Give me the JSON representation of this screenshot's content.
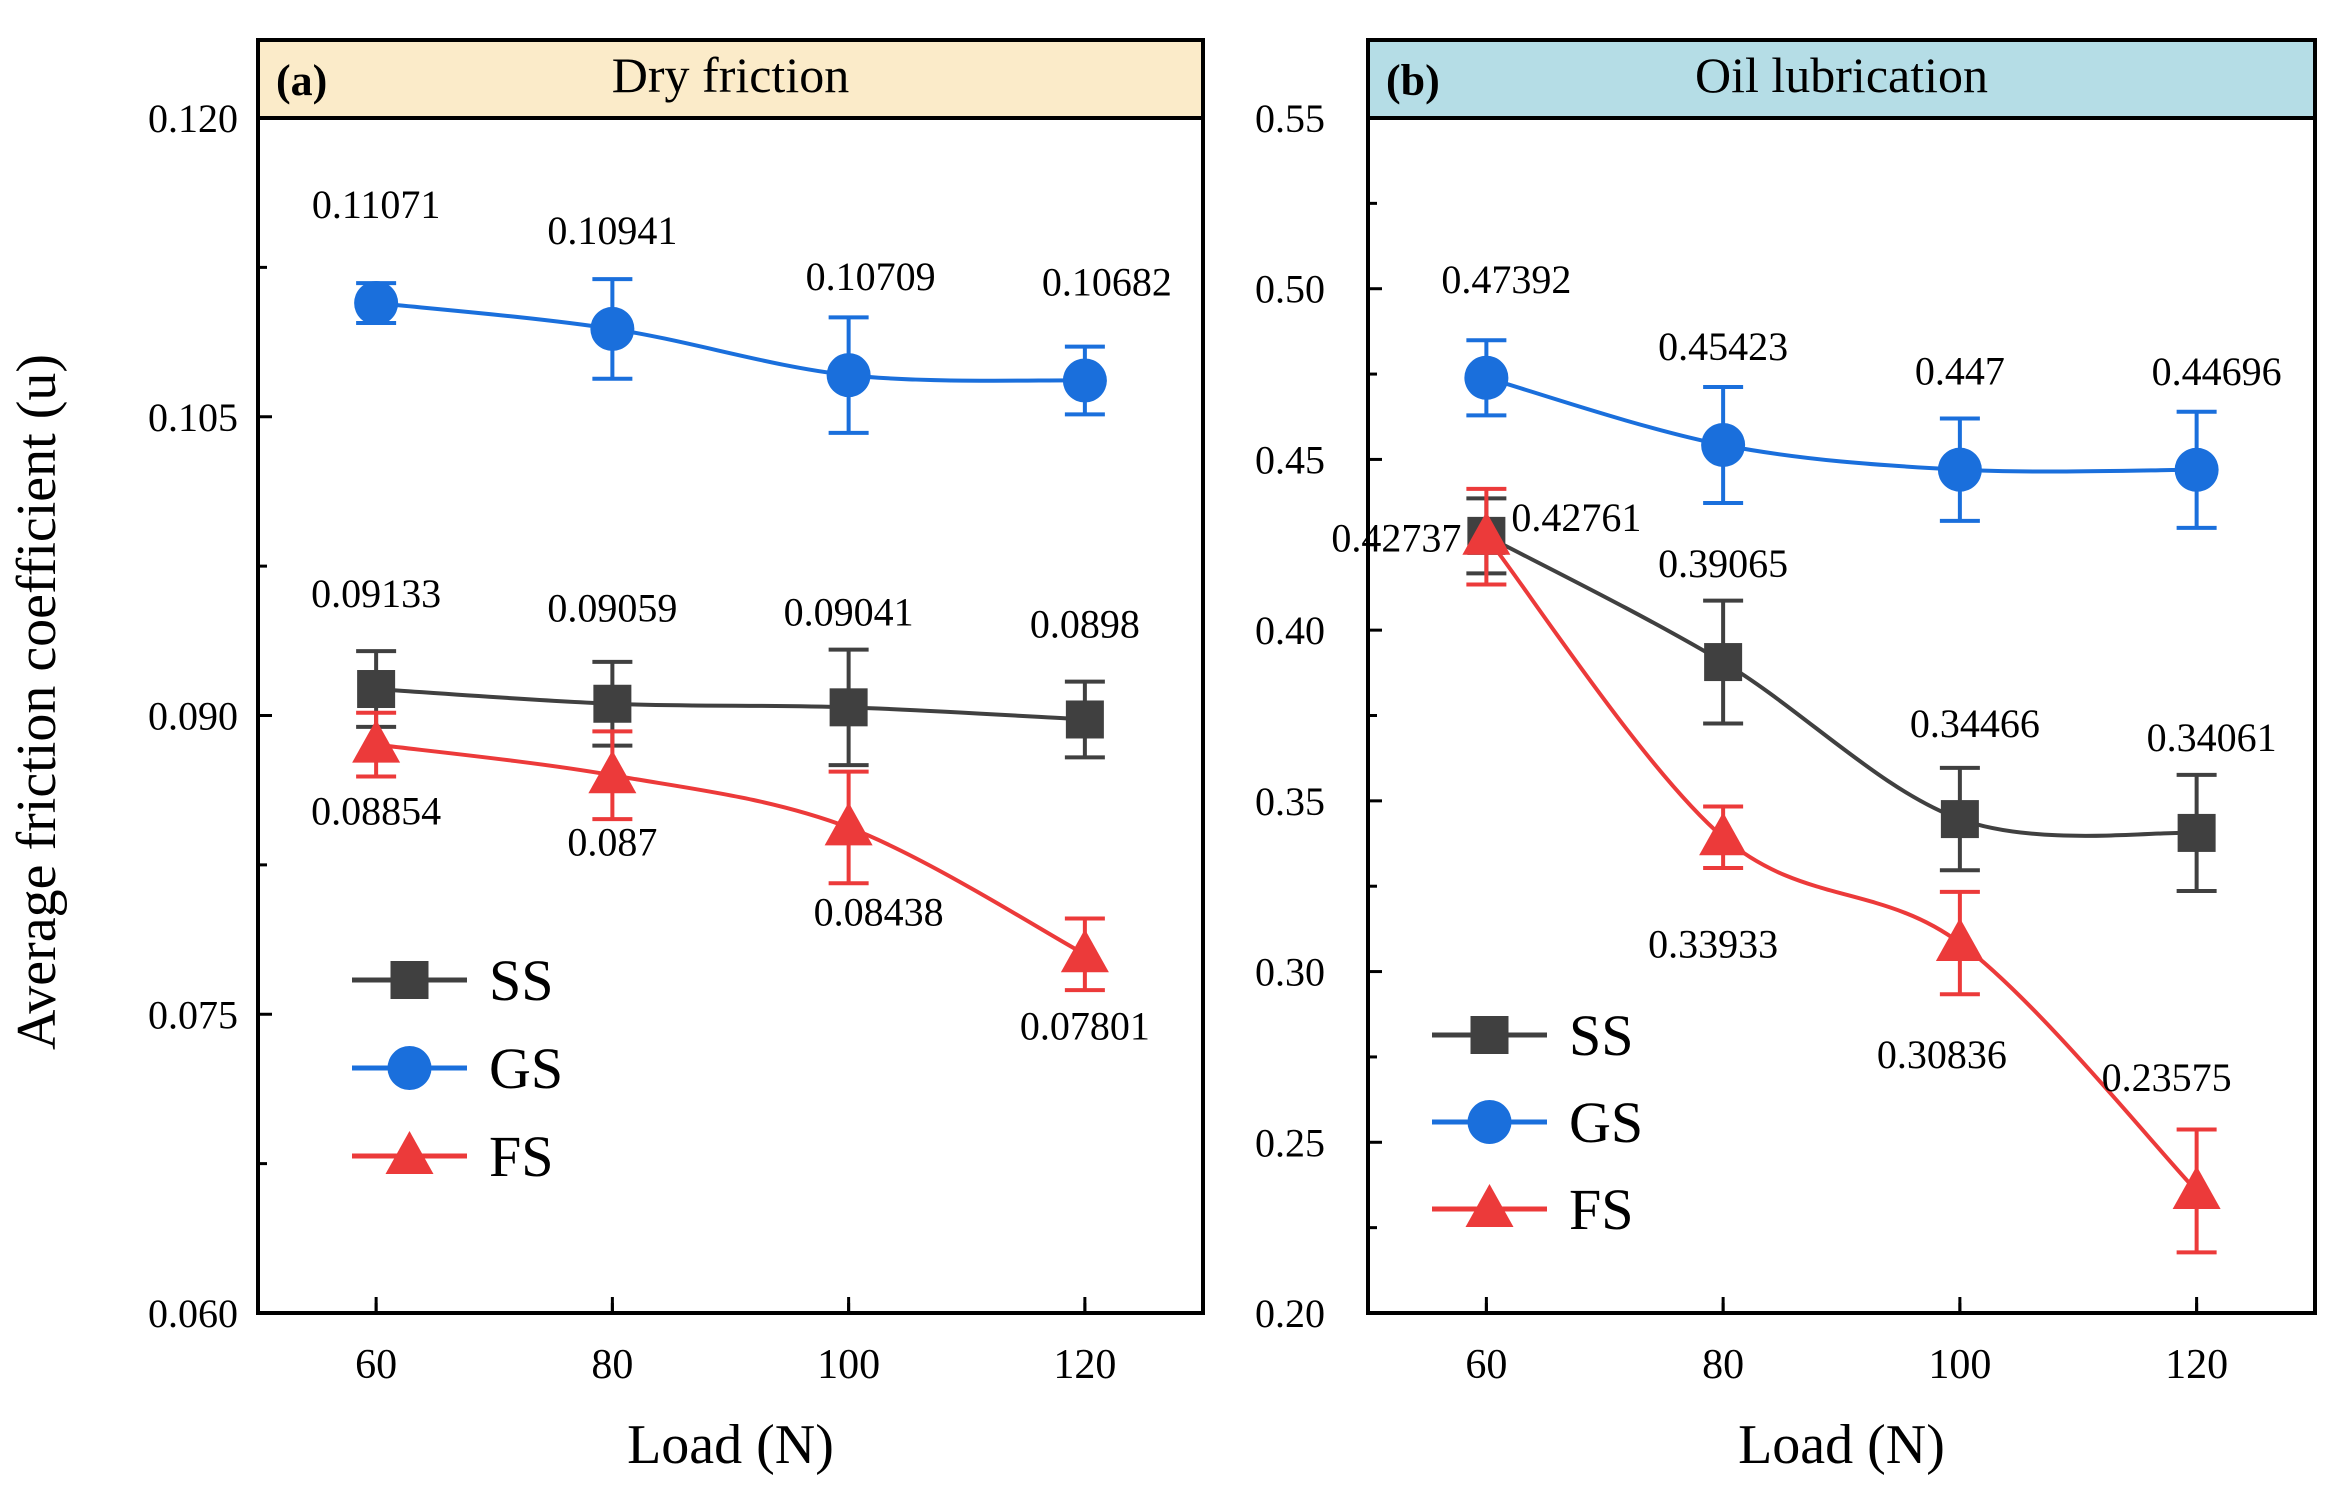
{
  "figure": {
    "ylabel": "Average friction coefficient (u)",
    "colors": {
      "SS": "#404040",
      "GS": "#1a6fdc",
      "FS": "#ec3a3a",
      "axis": "#000000",
      "header_a": "#fbebc9",
      "header_b": "#b5dde6"
    }
  },
  "chart_data": [
    {
      "type": "line",
      "panel_label": "(a)",
      "title": "Dry friction",
      "xlabel": "Load (N)",
      "ylabel": "Average friction coefficient (u)",
      "x": [
        60,
        80,
        100,
        120
      ],
      "xlim": [
        50,
        130
      ],
      "xticks": [
        60,
        80,
        100,
        120
      ],
      "ylim": [
        0.06,
        0.12
      ],
      "yticks": [
        0.06,
        0.075,
        0.09,
        0.105,
        0.12
      ],
      "ytick_labels": [
        "0.060",
        "0.075",
        "0.090",
        "0.105",
        "0.120"
      ],
      "legend_position": "lower-left",
      "series": [
        {
          "name": "SS",
          "marker": "square",
          "values": [
            0.09133,
            0.09059,
            0.09041,
            0.0898
          ],
          "errors": [
            0.0019,
            0.0021,
            0.0029,
            0.0019
          ],
          "labels": [
            "0.09133",
            "0.09059",
            "0.09041",
            "0.0898"
          ],
          "label_side": "above"
        },
        {
          "name": "GS",
          "marker": "circle",
          "values": [
            0.11071,
            0.10941,
            0.10709,
            0.10682
          ],
          "errors": [
            0.001,
            0.0025,
            0.0029,
            0.0017
          ],
          "labels": [
            "0.11071",
            "0.10941",
            "0.10709",
            "0.10682"
          ],
          "label_side": "above"
        },
        {
          "name": "FS",
          "marker": "triangle",
          "values": [
            0.08854,
            0.087,
            0.08438,
            0.07801
          ],
          "errors": [
            0.0016,
            0.0022,
            0.0028,
            0.0018
          ],
          "labels": [
            "0.08854",
            "0.087",
            "0.08438",
            "0.07801"
          ],
          "label_side": "below"
        }
      ]
    },
    {
      "type": "line",
      "panel_label": "(b)",
      "title": "Oil lubrication",
      "xlabel": "Load (N)",
      "ylabel": "",
      "x": [
        60,
        80,
        100,
        120
      ],
      "xlim": [
        50,
        130
      ],
      "xticks": [
        60,
        80,
        100,
        120
      ],
      "ylim": [
        0.2,
        0.55
      ],
      "yticks": [
        0.2,
        0.25,
        0.3,
        0.35,
        0.4,
        0.45,
        0.5,
        0.55
      ],
      "ytick_labels": [
        "0.20",
        "0.25",
        "0.30",
        "0.35",
        "0.40",
        "0.45",
        "0.50",
        "0.55"
      ],
      "legend_position": "lower-left",
      "series": [
        {
          "name": "SS",
          "marker": "square",
          "values": [
            0.42761,
            0.39065,
            0.34466,
            0.34061
          ],
          "errors": [
            0.011,
            0.018,
            0.015,
            0.017
          ],
          "labels": [
            "0.42761",
            "0.39065",
            "0.34466",
            "0.34061"
          ],
          "label_side": "above"
        },
        {
          "name": "GS",
          "marker": "circle",
          "values": [
            0.47392,
            0.45423,
            0.447,
            0.44696
          ],
          "errors": [
            0.011,
            0.017,
            0.015,
            0.017
          ],
          "labels": [
            "0.47392",
            "0.45423",
            "0.447",
            "0.44696"
          ],
          "label_side": "above"
        },
        {
          "name": "FS",
          "marker": "triangle",
          "values": [
            0.42737,
            0.33933,
            0.30836,
            0.23575
          ],
          "errors": [
            0.014,
            0.009,
            0.015,
            0.018
          ],
          "labels": [
            "0.42737",
            "0.33933",
            "0.30836",
            "0.23575"
          ],
          "label_side": "below"
        }
      ]
    }
  ]
}
